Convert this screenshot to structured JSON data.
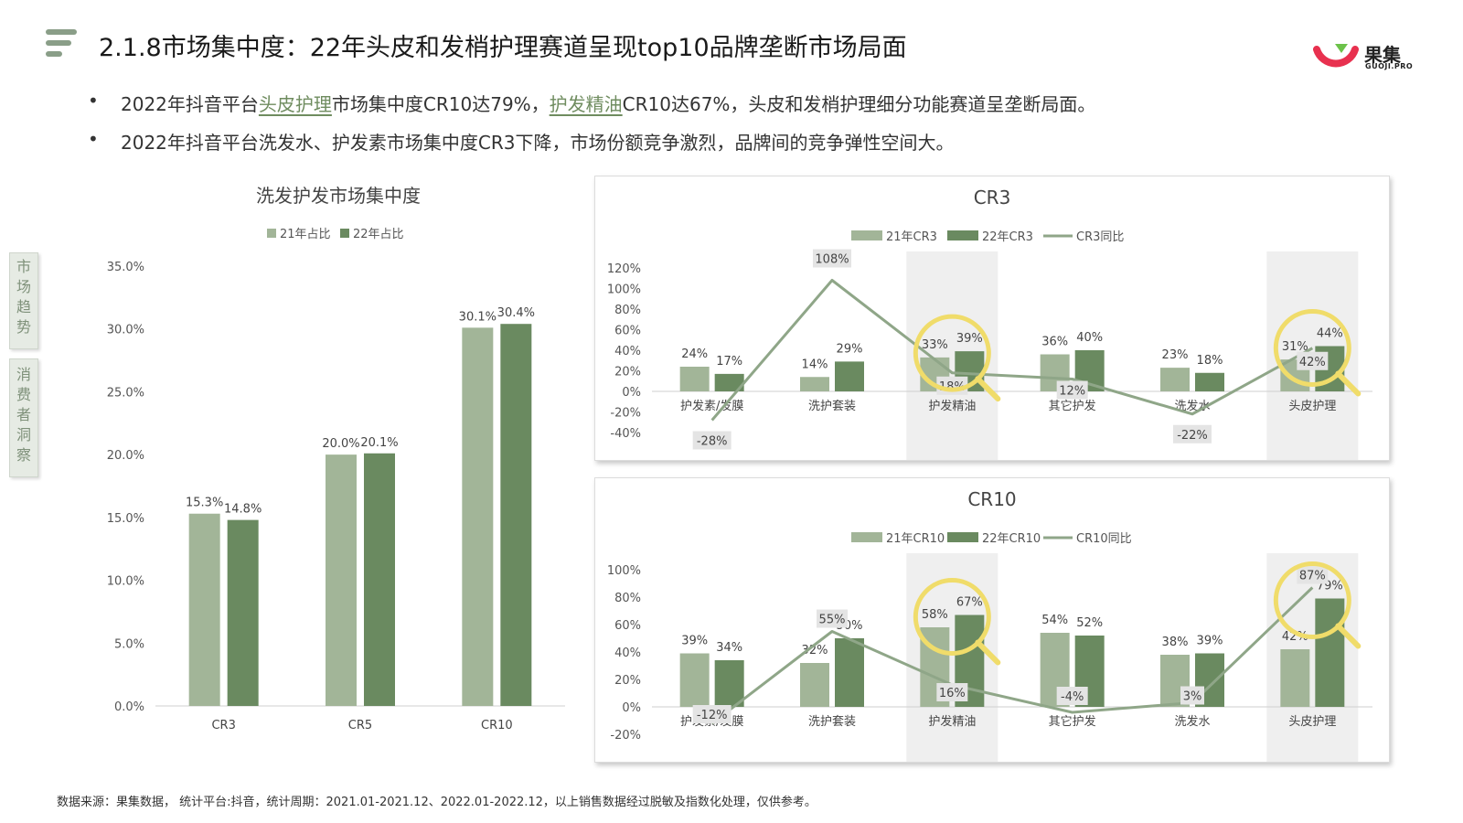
{
  "header": {
    "title": "2.1.8市场集中度：22年头皮和发梢护理赛道呈现top10品牌垄断市场局面",
    "logo_text": "果集",
    "logo_sub": "GUOJI.PRO"
  },
  "bullets": [
    {
      "pre": "2022年抖音平台",
      "hl1": "头皮护理",
      "mid": "市场集中度CR10达79%，",
      "hl2": "护发精油",
      "post": "CR10达67%，头皮和发梢护理细分功能赛道呈垄断局面。"
    },
    {
      "text": "2022年抖音平台洗发水、护发素市场集中度CR3下降，市场份额竞争激烈，品牌间的竞争弹性空间大。"
    }
  ],
  "side_tabs": [
    "市场趋势",
    "消费者洞察"
  ],
  "footer": "数据来源：果集数据， 统计平台:抖音，统计周期：2021.01-2021.12、2022.01-2022.12，以上销售数据经过脱敏及指数化处理，仅供参考。",
  "colors": {
    "light": "#a2b598",
    "dark": "#6a8a60",
    "line": "#8fa688",
    "highlight": "#f0dc6a",
    "band": "#efefef"
  },
  "chart_data": [
    {
      "type": "bar",
      "title": "洗发护发市场集中度",
      "categories": [
        "CR3",
        "CR5",
        "CR10"
      ],
      "series": [
        {
          "name": "21年占比",
          "values": [
            15.3,
            20.0,
            30.1
          ],
          "labels": [
            "15.3%",
            "20.0%",
            "30.1%"
          ]
        },
        {
          "name": "22年占比",
          "values": [
            14.8,
            20.1,
            30.4
          ],
          "labels": [
            "14.8%",
            "20.1%",
            "30.4%"
          ]
        }
      ],
      "yticks": [
        "0.0%",
        "5.0%",
        "10.0%",
        "15.0%",
        "20.0%",
        "25.0%",
        "30.0%",
        "35.0%"
      ],
      "ylim": [
        0,
        35
      ],
      "legend": "top-center",
      "grid": false
    },
    {
      "type": "bar",
      "title": "CR3",
      "categories": [
        "护发素/发膜",
        "洗护套装",
        "护发精油",
        "其它护发",
        "洗发水",
        "头皮护理"
      ],
      "series": [
        {
          "name": "21年CR3",
          "values": [
            24,
            14,
            33,
            36,
            23,
            31
          ]
        },
        {
          "name": "22年CR3",
          "values": [
            17,
            29,
            39,
            40,
            18,
            44
          ]
        },
        {
          "name": "CR3同比",
          "type": "line",
          "values": [
            -28,
            108,
            18,
            12,
            -22,
            42
          ]
        }
      ],
      "yticks": [
        "-40%",
        "-20%",
        "0%",
        "20%",
        "40%",
        "60%",
        "80%",
        "100%",
        "120%"
      ],
      "ylim": [
        -40,
        120
      ],
      "legend": "top-center",
      "highlighted_categories": [
        "护发精油",
        "头皮护理"
      ]
    },
    {
      "type": "bar",
      "title": "CR10",
      "categories": [
        "护发素/发膜",
        "洗护套装",
        "护发精油",
        "其它护发",
        "洗发水",
        "头皮护理"
      ],
      "series": [
        {
          "name": "21年CR10",
          "values": [
            39,
            32,
            58,
            54,
            38,
            42
          ]
        },
        {
          "name": "22年CR10",
          "values": [
            34,
            50,
            67,
            52,
            39,
            79
          ]
        },
        {
          "name": "CR10同比",
          "type": "line",
          "values": [
            -12,
            55,
            16,
            -4,
            3,
            87
          ]
        }
      ],
      "yticks": [
        "-20%",
        "0%",
        "20%",
        "40%",
        "60%",
        "80%",
        "100%"
      ],
      "ylim": [
        -20,
        100
      ],
      "legend": "top-center",
      "highlighted_categories": [
        "护发精油",
        "头皮护理"
      ]
    }
  ]
}
